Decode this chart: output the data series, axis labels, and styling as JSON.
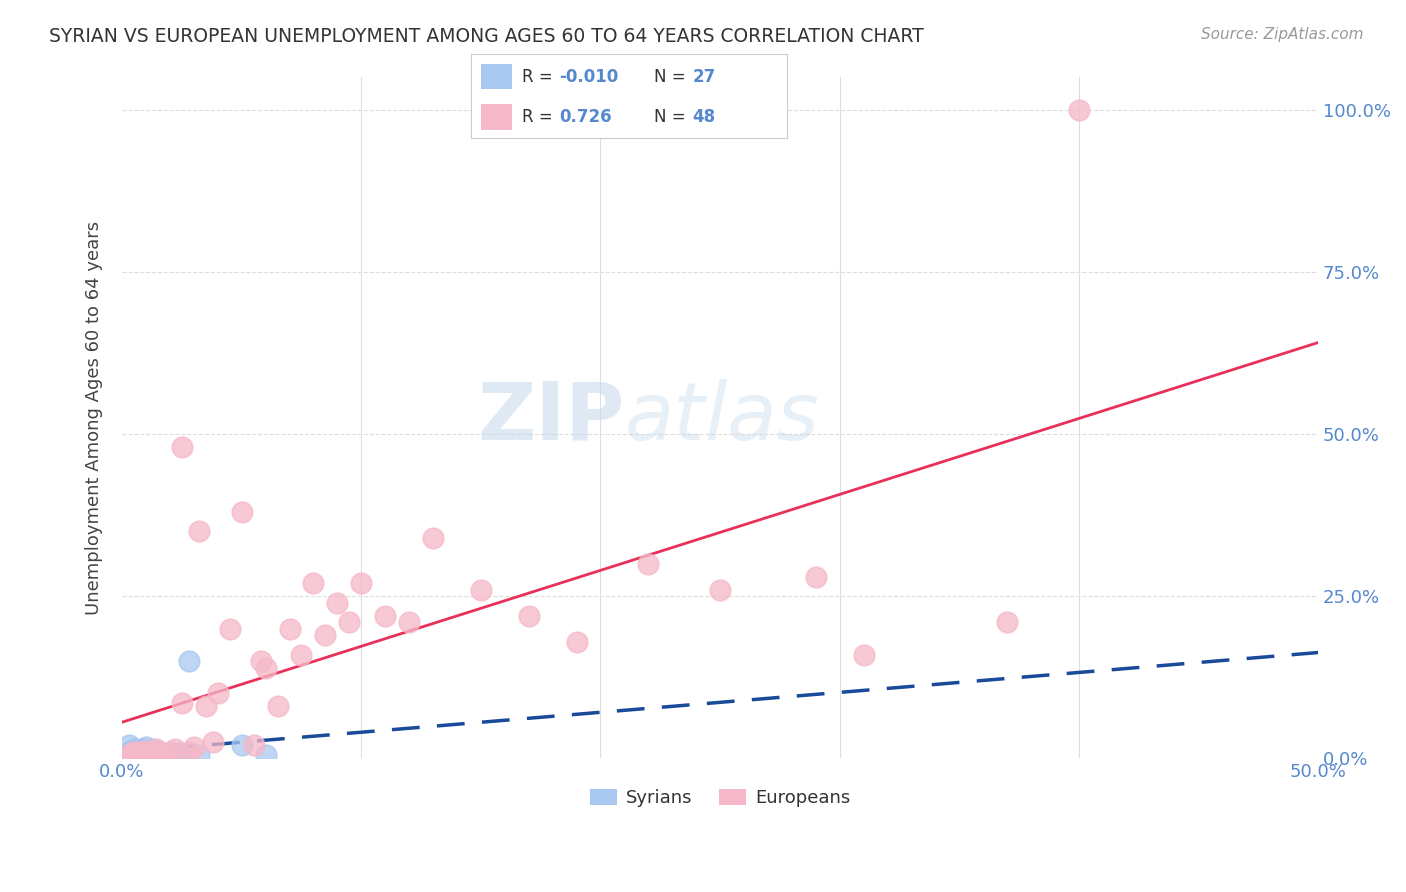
{
  "title": "SYRIAN VS EUROPEAN UNEMPLOYMENT AMONG AGES 60 TO 64 YEARS CORRELATION CHART",
  "source": "Source: ZipAtlas.com",
  "xlim": [
    0.0,
    0.5
  ],
  "ylim": [
    0.0,
    1.05
  ],
  "syrian_R": "-0.010",
  "syrian_N": "27",
  "european_R": "0.726",
  "european_N": "48",
  "syrian_color": "#a8c8f0",
  "european_color": "#f5b8c8",
  "syrian_line_color": "#1a4a9a",
  "european_line_color": "#e8305a",
  "watermark_color": "#d0dff0",
  "background_color": "#ffffff",
  "grid_color": "#dddddd",
  "tick_color": "#5588cc",
  "label_color": "#444444",
  "syrian_scatter_x": [
    0.003,
    0.003,
    0.004,
    0.005,
    0.005,
    0.006,
    0.007,
    0.008,
    0.009,
    0.009,
    0.01,
    0.01,
    0.01,
    0.012,
    0.013,
    0.015,
    0.016,
    0.017,
    0.018,
    0.02,
    0.021,
    0.022,
    0.024,
    0.028,
    0.032,
    0.05,
    0.06
  ],
  "syrian_scatter_y": [
    0.01,
    0.02,
    0.008,
    0.015,
    0.005,
    0.012,
    0.008,
    0.015,
    0.01,
    0.003,
    0.018,
    0.01,
    0.003,
    0.008,
    0.015,
    0.01,
    0.005,
    0.008,
    0.003,
    0.01,
    0.005,
    0.003,
    0.008,
    0.15,
    0.005,
    0.02,
    0.005
  ],
  "european_scatter_x": [
    0.003,
    0.004,
    0.005,
    0.006,
    0.008,
    0.01,
    0.01,
    0.012,
    0.013,
    0.014,
    0.015,
    0.017,
    0.018,
    0.02,
    0.022,
    0.025,
    0.025,
    0.028,
    0.03,
    0.032,
    0.035,
    0.038,
    0.04,
    0.045,
    0.05,
    0.055,
    0.058,
    0.06,
    0.065,
    0.07,
    0.075,
    0.08,
    0.085,
    0.09,
    0.095,
    0.1,
    0.11,
    0.12,
    0.13,
    0.15,
    0.17,
    0.19,
    0.22,
    0.25,
    0.29,
    0.31,
    0.37,
    0.4
  ],
  "european_scatter_y": [
    0.005,
    0.008,
    0.01,
    0.008,
    0.01,
    0.005,
    0.012,
    0.008,
    0.01,
    0.015,
    0.01,
    0.005,
    0.008,
    0.01,
    0.015,
    0.48,
    0.085,
    0.01,
    0.018,
    0.35,
    0.08,
    0.025,
    0.1,
    0.2,
    0.38,
    0.02,
    0.15,
    0.14,
    0.08,
    0.2,
    0.16,
    0.27,
    0.19,
    0.24,
    0.21,
    0.27,
    0.22,
    0.21,
    0.34,
    0.26,
    0.22,
    0.18,
    0.3,
    0.26,
    0.28,
    0.16,
    0.21,
    1.0
  ],
  "ytick_positions": [
    0.0,
    0.25,
    0.5,
    0.75,
    1.0
  ],
  "ytick_labels": [
    "0.0%",
    "25.0%",
    "50.0%",
    "75.0%",
    "100.0%"
  ],
  "xtick_positions": [
    0.0,
    0.1,
    0.2,
    0.3,
    0.4,
    0.5
  ],
  "xtick_labels": [
    "0.0%",
    "",
    "",
    "",
    "",
    "50.0%"
  ]
}
